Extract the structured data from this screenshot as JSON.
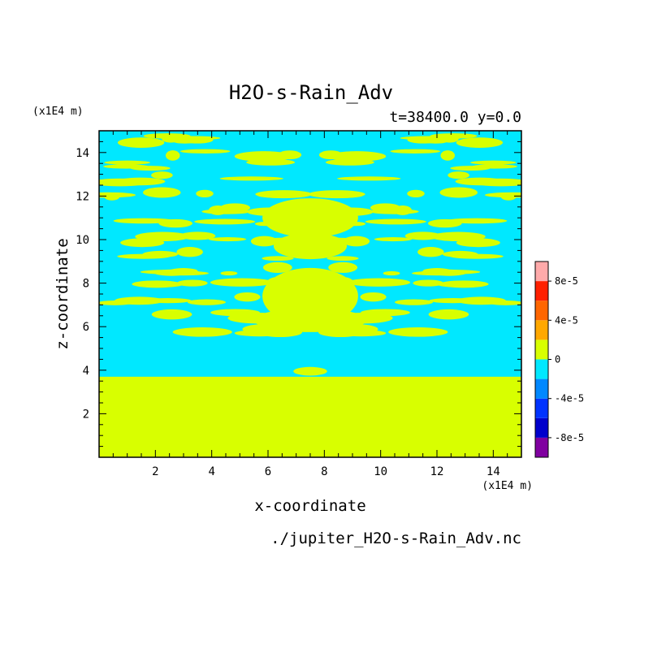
{
  "chart_data": {
    "type": "heatmap",
    "title": "H2O-s-Rain_Adv",
    "subtitle": "t=38400.0 y=0.0",
    "xlabel": "x-coordinate",
    "ylabel": "z-coordinate",
    "x_unit": "(x1E4 m)",
    "y_unit": "(x1E4 m)",
    "xlim": [
      0,
      15
    ],
    "ylim": [
      0,
      15
    ],
    "x_ticks": [
      2,
      4,
      6,
      8,
      10,
      12,
      14
    ],
    "y_ticks": [
      2,
      4,
      6,
      8,
      10,
      12,
      14
    ],
    "x_tick_labels": [
      "2",
      "4",
      "6",
      "8",
      "10",
      "12",
      "14"
    ],
    "y_tick_labels": [
      "2",
      "4",
      "6",
      "8",
      "10",
      "12",
      "14"
    ],
    "dominant_field_value": 0,
    "negative_region_value": -2e-05,
    "negative_region_zmin": 3.7,
    "negative_region_zmax": 15,
    "colorbar": {
      "levels": [
        -0.0001,
        -8e-05,
        -6e-05,
        -4e-05,
        -2e-05,
        0,
        2e-05,
        4e-05,
        6e-05,
        8e-05,
        0.0001
      ],
      "colors": [
        "#8000a0",
        "#0000cc",
        "#0033ff",
        "#0088ff",
        "#00e8ff",
        "#d8ff00",
        "#ffa800",
        "#ff6600",
        "#ff2000",
        "#ffaaaa"
      ],
      "tick_values": [
        -8e-05,
        -4e-05,
        0,
        4e-05,
        8e-05
      ],
      "tick_labels": [
        "-8e-5",
        "-4e-5",
        "0",
        "4e-5",
        "8e-5"
      ]
    },
    "source_file": "./jupiter_H2O-s-Rain_Adv.nc"
  },
  "colors": {
    "field_zero": "#d8ff00",
    "field_negative": "#00e8ff",
    "axes": "#000000",
    "background": "#ffffff"
  }
}
